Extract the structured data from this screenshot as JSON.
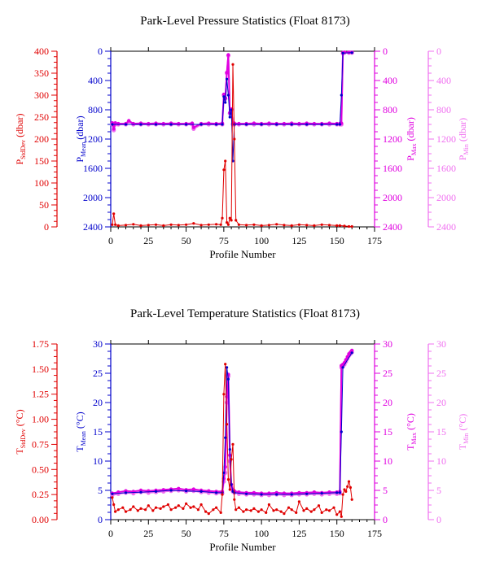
{
  "colors": {
    "stddev": "#e00000",
    "mean": "#0000cc",
    "max": "#e000e0",
    "min": "#f070f0",
    "frame": "#000000"
  },
  "chart_data": [
    {
      "type": "line",
      "title": "Park-Level Pressure Statistics (Float 8173)",
      "xlabel": "Profile Number",
      "xlim": [
        0,
        175
      ],
      "xticks": [
        0,
        25,
        50,
        75,
        100,
        125,
        150,
        175
      ],
      "axes": [
        {
          "key": "stddev",
          "label_main": "P",
          "label_sub": "StdDev",
          "label_unit": " (dbar)",
          "lim": [
            0,
            400
          ],
          "ticks": [
            0,
            50,
            100,
            150,
            200,
            250,
            300,
            350,
            400
          ],
          "inverted": false
        },
        {
          "key": "mean",
          "label_main": "P",
          "label_sub": "Mean",
          "label_unit": " (dbar)",
          "lim": [
            0,
            2400
          ],
          "ticks": [
            0,
            400,
            800,
            1200,
            1600,
            2000,
            2400
          ],
          "inverted": true
        },
        {
          "key": "max",
          "label_main": "P",
          "label_sub": "Max",
          "label_unit": " (dbar)",
          "lim": [
            0,
            2400
          ],
          "ticks": [
            0,
            400,
            800,
            1200,
            1600,
            2000,
            2400
          ],
          "inverted": true
        },
        {
          "key": "min",
          "label_main": "P",
          "label_sub": "Min",
          "label_unit": " (dbar)",
          "lim": [
            0,
            2400
          ],
          "ticks": [
            0,
            400,
            800,
            1200,
            1600,
            2000,
            2400
          ],
          "inverted": true
        }
      ],
      "series": [
        {
          "axis": "min",
          "x": [
            1,
            2,
            3,
            5,
            10,
            12,
            15,
            20,
            25,
            30,
            35,
            40,
            45,
            50,
            54,
            55,
            60,
            65,
            70,
            74,
            75,
            76,
            77,
            78,
            79,
            80,
            81,
            82,
            85,
            90,
            95,
            100,
            105,
            110,
            115,
            120,
            125,
            130,
            135,
            140,
            145,
            150,
            152,
            153,
            154,
            155,
            158,
            160
          ],
          "values": [
            1000,
            1080,
            1000,
            1000,
            1000,
            960,
            1000,
            1000,
            1000,
            1000,
            1000,
            1000,
            1000,
            1000,
            1000,
            1060,
            1000,
            1000,
            1000,
            1000,
            600,
            650,
            300,
            60,
            850,
            800,
            1000,
            1000,
            1000,
            1000,
            1000,
            1000,
            1000,
            1000,
            1000,
            1000,
            1000,
            1000,
            1000,
            1000,
            1000,
            1000,
            1000,
            1000,
            30,
            20,
            20,
            20
          ]
        },
        {
          "axis": "max",
          "x": [
            1,
            2,
            3,
            5,
            10,
            12,
            15,
            20,
            25,
            30,
            35,
            40,
            45,
            50,
            54,
            55,
            60,
            65,
            70,
            74,
            75,
            76,
            77,
            78,
            79,
            80,
            81,
            82,
            85,
            90,
            95,
            100,
            105,
            110,
            115,
            120,
            125,
            130,
            135,
            140,
            145,
            150,
            152,
            153,
            154,
            155,
            158,
            160
          ],
          "values": [
            980,
            1060,
            980,
            990,
            990,
            950,
            990,
            985,
            990,
            985,
            990,
            985,
            990,
            990,
            985,
            1040,
            990,
            985,
            990,
            985,
            590,
            640,
            290,
            50,
            840,
            790,
            990,
            985,
            990,
            990,
            985,
            990,
            985,
            990,
            990,
            985,
            990,
            985,
            990,
            990,
            985,
            990,
            990,
            985,
            20,
            15,
            15,
            15
          ]
        },
        {
          "axis": "mean",
          "x": [
            1,
            10,
            20,
            30,
            40,
            50,
            60,
            70,
            74,
            75,
            76,
            77,
            78,
            79,
            80,
            81,
            82,
            90,
            100,
            110,
            120,
            130,
            140,
            150,
            152,
            153,
            154,
            160
          ],
          "values": [
            1000,
            1000,
            1000,
            1000,
            1000,
            1000,
            1000,
            1000,
            1000,
            620,
            700,
            380,
            600,
            900,
            800,
            1500,
            1000,
            1000,
            1000,
            1000,
            1000,
            1000,
            1000,
            1000,
            1000,
            600,
            25,
            20
          ]
        },
        {
          "axis": "stddev",
          "x": [
            1,
            2,
            3,
            5,
            10,
            15,
            20,
            25,
            30,
            35,
            40,
            45,
            50,
            55,
            60,
            65,
            70,
            73,
            74,
            75,
            76,
            77,
            78,
            79,
            80,
            81,
            82,
            83,
            85,
            90,
            95,
            100,
            105,
            110,
            115,
            120,
            125,
            130,
            135,
            140,
            145,
            150,
            152,
            155,
            158,
            160
          ],
          "values": [
            5,
            30,
            5,
            3,
            4,
            6,
            3,
            4,
            5,
            3,
            5,
            4,
            5,
            8,
            4,
            5,
            6,
            5,
            20,
            130,
            150,
            10,
            5,
            20,
            15,
            370,
            200,
            15,
            5,
            4,
            5,
            3,
            4,
            6,
            4,
            3,
            5,
            4,
            3,
            5,
            4,
            3,
            3,
            2,
            1,
            1
          ]
        }
      ]
    },
    {
      "type": "line",
      "title": "Park-Level Temperature Statistics (Float 8173)",
      "xlabel": "Profile Number",
      "xlim": [
        0,
        175
      ],
      "xticks": [
        0,
        25,
        50,
        75,
        100,
        125,
        150,
        175
      ],
      "axes": [
        {
          "key": "stddev",
          "label_main": "T",
          "label_sub": "StdDev",
          "label_unit": " (°C)",
          "lim": [
            0,
            1.75
          ],
          "ticks": [
            "0.00",
            "0.25",
            "0.50",
            "0.75",
            "1.00",
            "1.25",
            "1.50",
            "1.75"
          ],
          "inverted": false
        },
        {
          "key": "mean",
          "label_main": "T",
          "label_sub": "Mean",
          "label_unit": " (°C)",
          "lim": [
            0,
            30
          ],
          "ticks": [
            0,
            5,
            10,
            15,
            20,
            25,
            30
          ],
          "inverted": false
        },
        {
          "key": "max",
          "label_main": "T",
          "label_sub": "Max",
          "label_unit": " (°C)",
          "lim": [
            0,
            30
          ],
          "ticks": [
            0,
            5,
            10,
            15,
            20,
            25,
            30
          ],
          "inverted": false
        },
        {
          "key": "min",
          "label_main": "T",
          "label_sub": "Min",
          "label_unit": " (°C)",
          "lim": [
            0,
            30
          ],
          "ticks": [
            0,
            5,
            10,
            15,
            20,
            25,
            30
          ],
          "inverted": false
        }
      ],
      "series": [
        {
          "axis": "min",
          "x": [
            1,
            5,
            10,
            15,
            20,
            25,
            30,
            35,
            40,
            45,
            50,
            55,
            60,
            65,
            70,
            74,
            75,
            76,
            77,
            78,
            79,
            80,
            81,
            82,
            85,
            90,
            95,
            100,
            105,
            110,
            115,
            120,
            125,
            130,
            135,
            140,
            145,
            150,
            152,
            153,
            154,
            155,
            156,
            157,
            158,
            159,
            160
          ],
          "values": [
            4.2,
            4.4,
            4.6,
            4.5,
            4.7,
            4.6,
            4.7,
            4.8,
            4.9,
            5.0,
            4.8,
            4.9,
            4.7,
            4.6,
            4.5,
            4.5,
            6.5,
            8,
            20,
            24.5,
            10,
            5.5,
            4.8,
            4.6,
            4.4,
            4.3,
            4.3,
            4.2,
            4.2,
            4.3,
            4.2,
            4.2,
            4.3,
            4.3,
            4.4,
            4.3,
            4.4,
            4.4,
            4.5,
            26,
            26.2,
            26.5,
            27,
            27.5,
            28,
            28.3,
            28.6
          ]
        },
        {
          "axis": "max",
          "x": [
            1,
            5,
            10,
            15,
            20,
            25,
            30,
            35,
            40,
            45,
            50,
            55,
            60,
            65,
            70,
            74,
            75,
            76,
            77,
            78,
            79,
            80,
            81,
            82,
            85,
            90,
            95,
            100,
            105,
            110,
            115,
            120,
            125,
            130,
            135,
            140,
            145,
            150,
            152,
            153,
            154,
            155,
            156,
            157,
            158,
            159,
            160
          ],
          "values": [
            4.5,
            4.7,
            4.9,
            4.8,
            5.0,
            4.9,
            5.0,
            5.1,
            5.2,
            5.3,
            5.1,
            5.2,
            5.0,
            4.9,
            4.8,
            4.8,
            7,
            9,
            21,
            24.8,
            11,
            6,
            5.1,
            4.9,
            4.7,
            4.6,
            4.6,
            4.5,
            4.5,
            4.6,
            4.5,
            4.5,
            4.6,
            4.6,
            4.7,
            4.6,
            4.7,
            4.7,
            4.8,
            26.3,
            26.5,
            26.8,
            27.3,
            27.8,
            28.3,
            28.6,
            28.9
          ]
        },
        {
          "axis": "mean",
          "x": [
            1,
            10,
            20,
            30,
            40,
            50,
            60,
            70,
            74,
            75,
            76,
            77,
            78,
            79,
            80,
            81,
            82,
            90,
            100,
            110,
            120,
            130,
            140,
            150,
            152,
            153,
            154,
            160
          ],
          "values": [
            4.4,
            4.6,
            4.7,
            4.8,
            5.0,
            4.9,
            4.8,
            4.6,
            4.6,
            8,
            14,
            26,
            24,
            12,
            6,
            4.8,
            4.6,
            4.4,
            4.3,
            4.3,
            4.3,
            4.4,
            4.5,
            4.6,
            4.6,
            15,
            26,
            28.5
          ]
        },
        {
          "axis": "stddev",
          "x": [
            1,
            2,
            3,
            5,
            8,
            10,
            13,
            15,
            18,
            20,
            23,
            25,
            28,
            30,
            33,
            35,
            38,
            40,
            43,
            45,
            48,
            50,
            53,
            55,
            58,
            60,
            63,
            65,
            68,
            70,
            73,
            74,
            75,
            76,
            77,
            78,
            79,
            80,
            81,
            82,
            83,
            85,
            88,
            90,
            93,
            95,
            98,
            100,
            103,
            105,
            108,
            110,
            113,
            115,
            118,
            120,
            123,
            125,
            128,
            130,
            133,
            135,
            138,
            140,
            143,
            145,
            148,
            150,
            152,
            153,
            154,
            155,
            156,
            157,
            158,
            159,
            160
          ],
          "values": [
            0.22,
            0.15,
            0.08,
            0.1,
            0.12,
            0.08,
            0.1,
            0.13,
            0.09,
            0.11,
            0.1,
            0.14,
            0.09,
            0.12,
            0.11,
            0.13,
            0.15,
            0.1,
            0.12,
            0.14,
            0.11,
            0.16,
            0.12,
            0.13,
            0.1,
            0.15,
            0.08,
            0.06,
            0.1,
            0.12,
            0.07,
            0.25,
            1.25,
            1.55,
            0.95,
            0.4,
            0.3,
            0.6,
            0.75,
            0.2,
            0.1,
            0.12,
            0.08,
            0.1,
            0.09,
            0.11,
            0.08,
            0.1,
            0.07,
            0.15,
            0.09,
            0.1,
            0.08,
            0.06,
            0.12,
            0.1,
            0.07,
            0.18,
            0.09,
            0.11,
            0.08,
            0.1,
            0.14,
            0.07,
            0.1,
            0.09,
            0.12,
            0.05,
            0.08,
            0.03,
            0.25,
            0.3,
            0.28,
            0.33,
            0.38,
            0.32,
            0.2
          ]
        }
      ]
    }
  ]
}
